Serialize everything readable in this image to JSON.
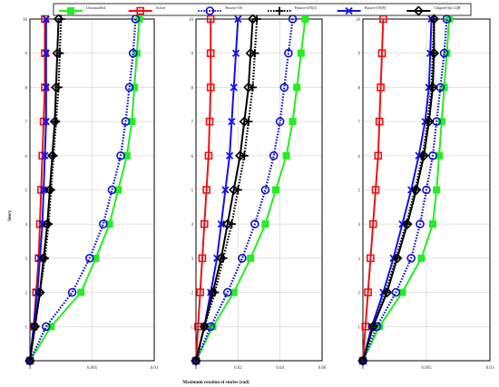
{
  "chart_data": {
    "type": "line",
    "xlabel": "Maximum rotation of stories (rad)",
    "ylabel": "Story",
    "y_ticks": [
      "0",
      "1",
      "2",
      "3",
      "4",
      "5",
      "6",
      "7",
      "8",
      "9",
      "10"
    ],
    "ylim": [
      0,
      10
    ],
    "grid": true,
    "legend_position": "top",
    "legend": [
      {
        "label": "Uncontrolled",
        "color": "#22ee22",
        "style": "solid",
        "marker": "square"
      },
      {
        "label": "Active",
        "color": "#ee1111",
        "style": "solid",
        "marker": "square-open"
      },
      {
        "label": "Passive-Off",
        "color": "#1111cc",
        "style": "dotted",
        "marker": "circle-open"
      },
      {
        "label": "Passive-ON(3)",
        "color": "#000000",
        "style": "dotted",
        "marker": "plus"
      },
      {
        "label": "Passive-ON(9)",
        "color": "#1111ee",
        "style": "solid",
        "marker": "x"
      },
      {
        "label": "Clipped-Opt LQR",
        "color": "#000000",
        "style": "solid",
        "marker": "diamond-open"
      }
    ],
    "panels": [
      {
        "x_ticks": [
          "0",
          "0.005",
          "0.01"
        ],
        "xlim": [
          0,
          0.01
        ],
        "series": [
          {
            "name": "Uncontrolled",
            "x": [
              0,
              0.0017,
              0.0041,
              0.0053,
              0.0064,
              0.0071,
              0.0078,
              0.0082,
              0.0084,
              0.0086,
              0.0088
            ],
            "y": [
              0,
              1,
              2,
              3,
              4,
              5,
              6,
              7,
              8,
              9,
              10
            ]
          },
          {
            "name": "Active",
            "x": [
              0,
              0.0003,
              0.0005,
              0.0007,
              0.0008,
              0.0009,
              0.001,
              0.0011,
              0.0012,
              0.0012,
              0.0012
            ],
            "y": [
              0,
              1,
              2,
              3,
              4,
              5,
              6,
              7,
              8,
              9,
              10
            ]
          },
          {
            "name": "Passive-Off",
            "x": [
              0,
              0.0013,
              0.0034,
              0.0048,
              0.0059,
              0.0066,
              0.0073,
              0.0077,
              0.008,
              0.0083,
              0.0085
            ],
            "y": [
              0,
              1,
              2,
              3,
              4,
              5,
              6,
              7,
              8,
              9,
              10
            ]
          },
          {
            "name": "Passive-ON(3)",
            "x": [
              0,
              0.0004,
              0.0008,
              0.0012,
              0.0015,
              0.0017,
              0.0019,
              0.0021,
              0.0023,
              0.0024,
              0.0025
            ],
            "y": [
              0,
              1,
              2,
              3,
              4,
              5,
              6,
              7,
              8,
              9,
              10
            ]
          },
          {
            "name": "Passive-ON(9)",
            "x": [
              0,
              0.0003,
              0.0006,
              0.0008,
              0.001,
              0.0011,
              0.0012,
              0.0013,
              0.0013,
              0.0013,
              0.0013
            ],
            "y": [
              0,
              1,
              2,
              3,
              4,
              5,
              6,
              7,
              8,
              9,
              10
            ]
          },
          {
            "name": "Clipped-Opt LQR",
            "x": [
              0,
              0.0004,
              0.0008,
              0.0011,
              0.0014,
              0.0016,
              0.0018,
              0.002,
              0.0021,
              0.0022,
              0.0023
            ],
            "y": [
              0,
              1,
              2,
              3,
              4,
              5,
              6,
              7,
              8,
              9,
              10
            ]
          }
        ]
      },
      {
        "x_ticks": [
          "0",
          "0.02",
          "0.04",
          "0.06"
        ],
        "xlim": [
          0,
          0.06
        ],
        "series": [
          {
            "name": "Uncontrolled",
            "x": [
              0,
              0.008,
              0.018,
              0.026,
              0.033,
              0.038,
              0.043,
              0.046,
              0.048,
              0.05,
              0.052
            ],
            "y": [
              0,
              1,
              2,
              3,
              4,
              5,
              6,
              7,
              8,
              9,
              10
            ]
          },
          {
            "name": "Active",
            "x": [
              0,
              0.001,
              0.002,
              0.003,
              0.004,
              0.005,
              0.006,
              0.0065,
              0.007,
              0.007,
              0.007
            ],
            "y": [
              0,
              1,
              2,
              3,
              4,
              5,
              6,
              7,
              8,
              9,
              10
            ]
          },
          {
            "name": "Passive-Off",
            "x": [
              0,
              0.007,
              0.015,
              0.022,
              0.028,
              0.033,
              0.037,
              0.04,
              0.042,
              0.044,
              0.046
            ],
            "y": [
              0,
              1,
              2,
              3,
              4,
              5,
              6,
              7,
              8,
              9,
              10
            ]
          },
          {
            "name": "Passive-ON(3)",
            "x": [
              0,
              0.004,
              0.009,
              0.013,
              0.017,
              0.02,
              0.023,
              0.025,
              0.027,
              0.028,
              0.029
            ],
            "y": [
              0,
              1,
              2,
              3,
              4,
              5,
              6,
              7,
              8,
              9,
              10
            ]
          },
          {
            "name": "Passive-ON(9)",
            "x": [
              0,
              0.004,
              0.007,
              0.01,
              0.012,
              0.014,
              0.016,
              0.017,
              0.018,
              0.019,
              0.02
            ],
            "y": [
              0,
              1,
              2,
              3,
              4,
              5,
              6,
              7,
              8,
              9,
              10
            ]
          },
          {
            "name": "Clipped-Opt LQR",
            "x": [
              0,
              0.004,
              0.008,
              0.012,
              0.015,
              0.018,
              0.021,
              0.023,
              0.025,
              0.026,
              0.027
            ],
            "y": [
              0,
              1,
              2,
              3,
              4,
              5,
              6,
              7,
              8,
              9,
              10
            ]
          }
        ]
      },
      {
        "x_ticks": [
          "0",
          "0.005",
          "0.01"
        ],
        "xlim": [
          0,
          0.01
        ],
        "series": [
          {
            "name": "Uncontrolled",
            "x": [
              0,
              0.0013,
              0.0031,
              0.0046,
              0.0055,
              0.0058,
              0.006,
              0.0062,
              0.0064,
              0.0066,
              0.0068
            ],
            "y": [
              0,
              1,
              2,
              3,
              4,
              5,
              6,
              7,
              8,
              9,
              10
            ]
          },
          {
            "name": "Active",
            "x": [
              0,
              0.0002,
              0.0004,
              0.0006,
              0.0008,
              0.001,
              0.0012,
              0.0013,
              0.0014,
              0.0015,
              0.0016
            ],
            "y": [
              0,
              1,
              2,
              3,
              4,
              5,
              6,
              7,
              8,
              9,
              10
            ]
          },
          {
            "name": "Passive-Off",
            "x": [
              0,
              0.0011,
              0.0026,
              0.0038,
              0.0045,
              0.005,
              0.0055,
              0.0058,
              0.0061,
              0.0064,
              0.0066
            ],
            "y": [
              0,
              1,
              2,
              3,
              4,
              5,
              6,
              7,
              8,
              9,
              10
            ]
          },
          {
            "name": "Passive-ON(3)",
            "x": [
              0,
              0.0008,
              0.0018,
              0.0026,
              0.0034,
              0.0041,
              0.0047,
              0.0051,
              0.0054,
              0.0055,
              0.0056
            ],
            "y": [
              0,
              1,
              2,
              3,
              4,
              5,
              6,
              7,
              8,
              9,
              10
            ]
          },
          {
            "name": "Passive-ON(9)",
            "x": [
              0,
              0.0007,
              0.0016,
              0.0024,
              0.0031,
              0.0038,
              0.0044,
              0.0049,
              0.0052,
              0.0053,
              0.0054
            ],
            "y": [
              0,
              1,
              2,
              3,
              4,
              5,
              6,
              7,
              8,
              9,
              10
            ]
          },
          {
            "name": "Clipped-Opt LQR",
            "x": [
              0,
              0.0008,
              0.0019,
              0.0027,
              0.0035,
              0.0042,
              0.0048,
              0.0052,
              0.0055,
              0.0056,
              0.0056
            ],
            "y": [
              0,
              1,
              2,
              3,
              4,
              5,
              6,
              7,
              8,
              9,
              10
            ]
          }
        ]
      }
    ]
  }
}
